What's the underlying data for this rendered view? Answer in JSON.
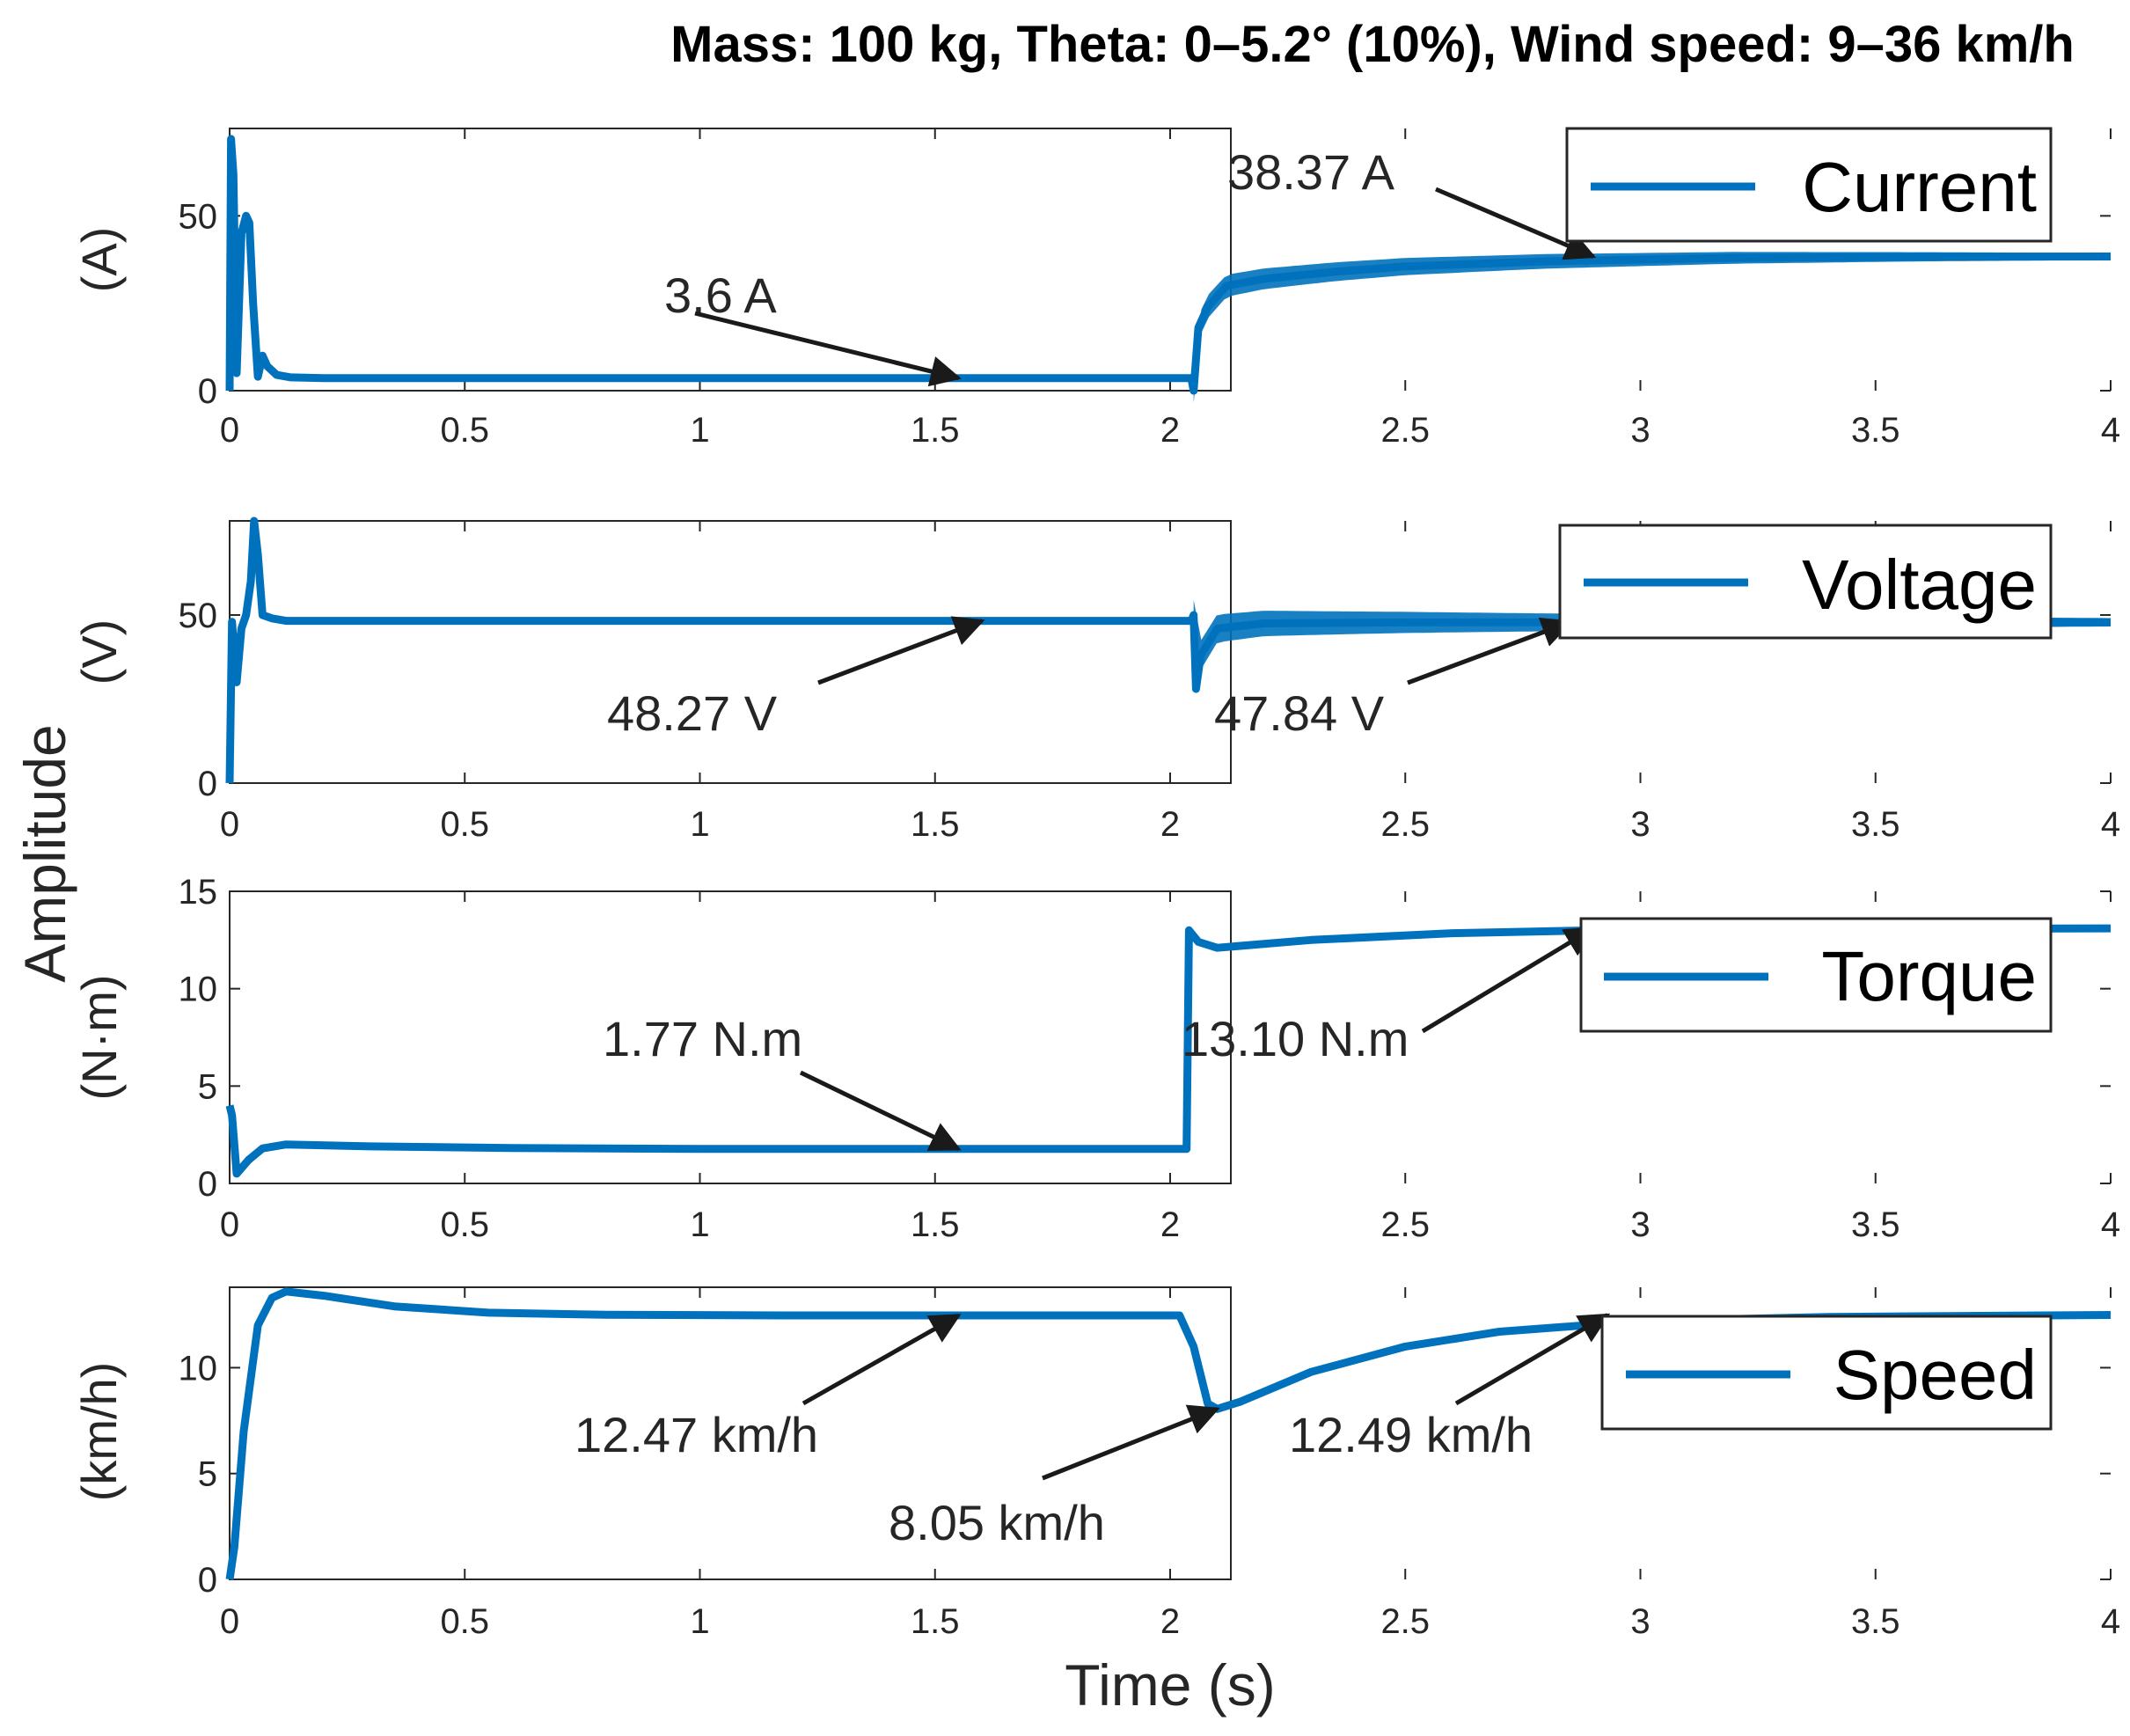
{
  "colors": {
    "series": "#0072BD",
    "axis": "#262626",
    "arrow": "#1a1a1a",
    "legend_border": "#262626"
  },
  "chart_data": {
    "type": "line",
    "title": "Mass: 100 kg, Theta: 0–5.2° (10%), Wind speed: 9–36 km/h",
    "xlabel": "Time (s)",
    "shared_ylabel": "Amplitude",
    "xlim": [
      0,
      4
    ],
    "xticks": [
      0,
      0.5,
      1,
      1.5,
      2,
      2.5,
      3,
      3.5,
      4
    ],
    "xtick_labels": [
      "0",
      "0.5",
      "1",
      "1.5",
      "2",
      "2.5",
      "3",
      "3.5",
      "4"
    ],
    "panels": [
      {
        "id": "current",
        "ylabel": "(A)",
        "ylim": [
          0,
          75
        ],
        "yticks": [
          0,
          50
        ],
        "ytick_labels": [
          "0",
          "50"
        ],
        "legend": "Current",
        "band_ripple": {
          "from": 2.05,
          "to": 4.0,
          "amp_start": 7,
          "amp_end": 2
        },
        "series": [
          [
            0,
            0
          ],
          [
            0.003,
            72
          ],
          [
            0.008,
            62
          ],
          [
            0.015,
            5
          ],
          [
            0.025,
            45
          ],
          [
            0.035,
            50
          ],
          [
            0.042,
            48
          ],
          [
            0.05,
            25
          ],
          [
            0.06,
            4
          ],
          [
            0.07,
            10
          ],
          [
            0.08,
            7
          ],
          [
            0.1,
            4.5
          ],
          [
            0.13,
            3.8
          ],
          [
            0.2,
            3.6
          ],
          [
            1,
            3.6
          ],
          [
            2.045,
            3.6
          ],
          [
            2.05,
            0
          ],
          [
            2.06,
            18
          ],
          [
            2.08,
            24
          ],
          [
            2.12,
            30
          ],
          [
            2.2,
            32
          ],
          [
            2.35,
            34
          ],
          [
            2.5,
            35.5
          ],
          [
            2.8,
            37
          ],
          [
            3.2,
            38
          ],
          [
            3.6,
            38.3
          ],
          [
            4.0,
            38.37
          ]
        ],
        "annotations": [
          {
            "label": "3.6 A",
            "x": 1.55,
            "y": 3.6
          },
          {
            "label": "38.37 A",
            "x": 2.9,
            "y": 38.37
          }
        ]
      },
      {
        "id": "voltage",
        "ylabel": "(V)",
        "ylim": [
          0,
          78
        ],
        "yticks": [
          0,
          50
        ],
        "ytick_labels": [
          "0",
          "50"
        ],
        "legend": "Voltage",
        "band_ripple": {
          "from": 2.05,
          "to": 4.0,
          "amp_start": 9,
          "amp_end": 2.5
        },
        "series": [
          [
            0,
            0
          ],
          [
            0.005,
            48
          ],
          [
            0.015,
            30
          ],
          [
            0.025,
            46
          ],
          [
            0.035,
            50
          ],
          [
            0.045,
            60
          ],
          [
            0.052,
            78
          ],
          [
            0.06,
            68
          ],
          [
            0.07,
            50
          ],
          [
            0.09,
            49
          ],
          [
            0.12,
            48.27
          ],
          [
            1,
            48.27
          ],
          [
            2.045,
            48.27
          ],
          [
            2.05,
            50
          ],
          [
            2.055,
            28
          ],
          [
            2.065,
            38
          ],
          [
            2.1,
            46
          ],
          [
            2.2,
            47.5
          ],
          [
            2.5,
            47.8
          ],
          [
            4.0,
            47.84
          ]
        ],
        "annotations": [
          {
            "label": "48.27 V",
            "x": 1.6,
            "y": 48.27
          },
          {
            "label": "47.84 V",
            "x": 2.85,
            "y": 47.84
          }
        ]
      },
      {
        "id": "torque",
        "ylabel": "(N·m)",
        "ylim": [
          0,
          15
        ],
        "yticks": [
          0,
          5,
          10,
          15
        ],
        "ytick_labels": [
          "0",
          "5",
          "10",
          "15"
        ],
        "legend": "Torque",
        "series": [
          [
            0,
            4
          ],
          [
            0.005,
            3.5
          ],
          [
            0.015,
            0.5
          ],
          [
            0.04,
            1.2
          ],
          [
            0.07,
            1.8
          ],
          [
            0.12,
            2.0
          ],
          [
            0.3,
            1.9
          ],
          [
            0.6,
            1.82
          ],
          [
            1,
            1.77
          ],
          [
            2.035,
            1.77
          ],
          [
            2.04,
            13.0
          ],
          [
            2.06,
            12.4
          ],
          [
            2.1,
            12.1
          ],
          [
            2.3,
            12.5
          ],
          [
            2.6,
            12.85
          ],
          [
            3.0,
            13.05
          ],
          [
            4.0,
            13.1
          ]
        ],
        "annotations": [
          {
            "label": "1.77 N.m",
            "x": 1.55,
            "y": 1.77
          },
          {
            "label": "13.10 N.m",
            "x": 2.9,
            "y": 13.1
          }
        ]
      },
      {
        "id": "speed",
        "ylabel": "(km/h)",
        "ylim": [
          0,
          13.8
        ],
        "yticks": [
          0,
          5,
          10
        ],
        "ytick_labels": [
          "0",
          "5",
          "10"
        ],
        "legend": "Speed",
        "series": [
          [
            0,
            0
          ],
          [
            0.01,
            1.5
          ],
          [
            0.03,
            7
          ],
          [
            0.06,
            12
          ],
          [
            0.09,
            13.3
          ],
          [
            0.12,
            13.6
          ],
          [
            0.2,
            13.4
          ],
          [
            0.35,
            12.9
          ],
          [
            0.55,
            12.6
          ],
          [
            0.8,
            12.5
          ],
          [
            1.2,
            12.47
          ],
          [
            2.02,
            12.47
          ],
          [
            2.05,
            11
          ],
          [
            2.08,
            8.3
          ],
          [
            2.1,
            8.05
          ],
          [
            2.15,
            8.4
          ],
          [
            2.3,
            9.8
          ],
          [
            2.5,
            11.0
          ],
          [
            2.7,
            11.7
          ],
          [
            3.0,
            12.2
          ],
          [
            3.4,
            12.4
          ],
          [
            4.0,
            12.49
          ]
        ],
        "annotations": [
          {
            "label": "12.47 km/h",
            "x": 1.55,
            "y": 12.47
          },
          {
            "label": "8.05 km/h",
            "x": 2.1,
            "y": 8.05
          },
          {
            "label": "12.49 km/h",
            "x": 2.93,
            "y": 12.49
          }
        ]
      }
    ]
  }
}
